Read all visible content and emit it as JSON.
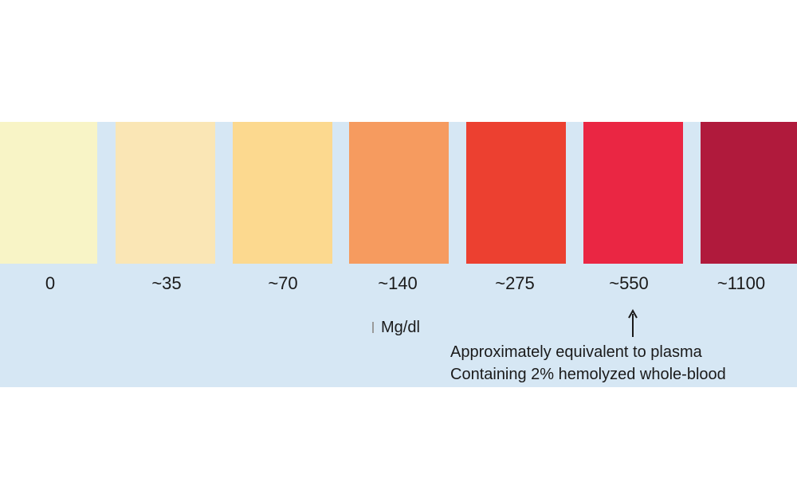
{
  "swatches": [
    {
      "label": "0",
      "color": "#f8f4c6"
    },
    {
      "label": "~35",
      "color": "#fae6b5"
    },
    {
      "label": "~70",
      "color": "#fcd98f"
    },
    {
      "label": "~140",
      "color": "#f69b5f"
    },
    {
      "label": "~275",
      "color": "#ec4030"
    },
    {
      "label": "~550",
      "color": "#ea2643"
    },
    {
      "label": "~1100",
      "color": "#b01a3c"
    }
  ],
  "unit": "Mg/dl",
  "note": {
    "line1": "Approximately equivalent to plasma",
    "line2": "Containing 2% hemolyzed whole-blood"
  },
  "background_color": "#d6e7f4"
}
